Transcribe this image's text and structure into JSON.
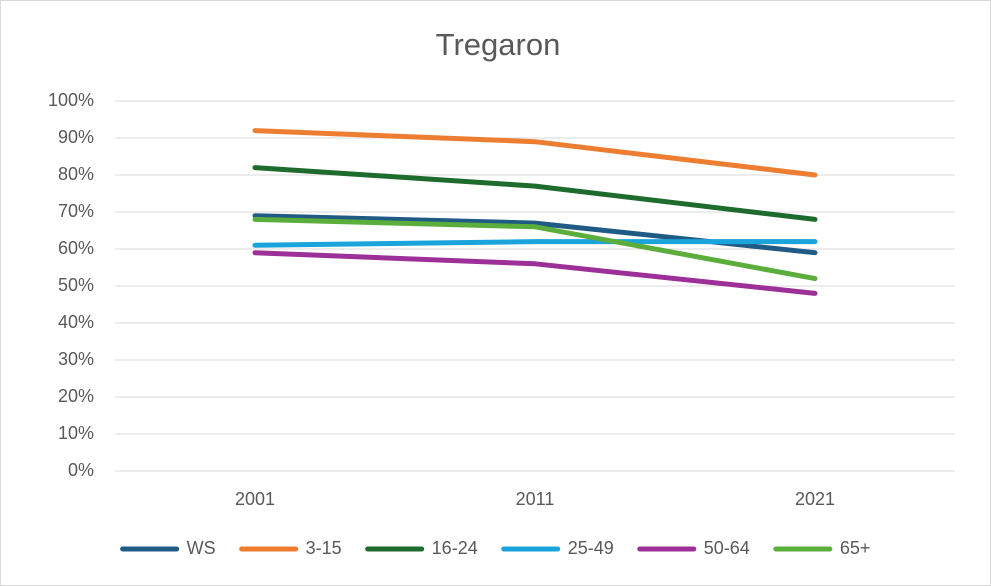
{
  "chart_data": {
    "type": "line",
    "title": "Tregaron",
    "categories": [
      "2001",
      "2011",
      "2021"
    ],
    "series": [
      {
        "name": "WS",
        "color": "#1f5b84",
        "values": [
          69,
          67,
          59
        ]
      },
      {
        "name": "3-15",
        "color": "#ed7d31",
        "values": [
          92,
          89,
          80
        ]
      },
      {
        "name": "16-24",
        "color": "#1e6b2e",
        "values": [
          82,
          77,
          68
        ]
      },
      {
        "name": "25-49",
        "color": "#1ba3dc",
        "values": [
          61,
          62,
          62
        ]
      },
      {
        "name": "50-64",
        "color": "#9c2f98",
        "values": [
          59,
          56,
          48
        ]
      },
      {
        "name": "65+",
        "color": "#5bae3c",
        "values": [
          68,
          66,
          52
        ]
      }
    ],
    "ylim": [
      0,
      100
    ],
    "yticks": [
      {
        "value": 0,
        "label": "0%"
      },
      {
        "value": 10,
        "label": "10%"
      },
      {
        "value": 20,
        "label": "20%"
      },
      {
        "value": 30,
        "label": "30%"
      },
      {
        "value": 40,
        "label": "40%"
      },
      {
        "value": 50,
        "label": "50%"
      },
      {
        "value": 60,
        "label": "60%"
      },
      {
        "value": 70,
        "label": "70%"
      },
      {
        "value": 80,
        "label": "80%"
      },
      {
        "value": 90,
        "label": "90%"
      },
      {
        "value": 100,
        "label": "100%"
      }
    ],
    "grid": true,
    "legend": "bottom"
  }
}
